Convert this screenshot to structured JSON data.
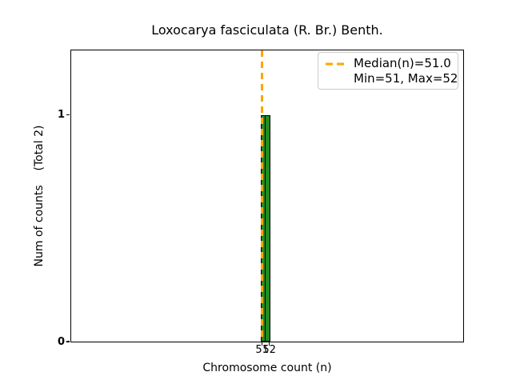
{
  "chart_data": {
    "type": "histogram",
    "title": "Loxocarya fasciculata (R. Br.) Benth.",
    "xlabel": "Chromosome count (n)",
    "ylabel": "Num of counts    (Total 2)",
    "total_counts": 2,
    "bins": {
      "edges": [
        51,
        51.5,
        52
      ],
      "counts": [
        1,
        1
      ]
    },
    "median": 51.0,
    "min": 51,
    "max": 52,
    "xticks": [
      51,
      52
    ],
    "yticks": [
      0,
      1
    ],
    "xlim": [
      24.4,
      79.0
    ],
    "ylim": [
      0,
      1.285
    ],
    "grid": false,
    "legend": {
      "position": "upper right",
      "entries": [
        {
          "label": "Median(n)=51.0",
          "marker": "orange-dashed-line"
        },
        {
          "label": "Min=51, Max=52",
          "marker": "none"
        }
      ]
    },
    "colors": {
      "bar_fill": "#228B22",
      "bar_edge": "#000000",
      "median_line": "#FFA500",
      "axis": "#000000",
      "legend_border": "#cccccc",
      "background": "#ffffff"
    }
  }
}
